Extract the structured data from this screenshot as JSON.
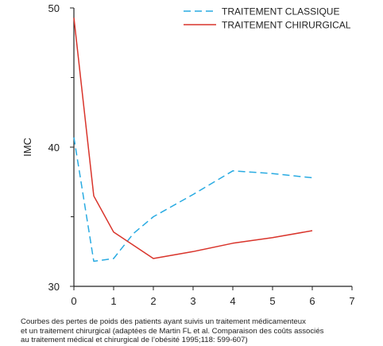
{
  "chart_data": {
    "type": "line",
    "ylabel": "IMC",
    "xlim": [
      0,
      7
    ],
    "ylim": [
      30,
      50
    ],
    "xticks": [
      "0",
      "1",
      "2",
      "3",
      "4",
      "5",
      "6",
      "7"
    ],
    "yticks": [
      "30",
      "40",
      "50"
    ],
    "grid": false,
    "legend_position": "top-right",
    "series": [
      {
        "name": "TRAITEMENT CLASSIQUE",
        "style": "dashed",
        "color": "#29abe2",
        "x": [
          0,
          0.5,
          1,
          1.5,
          2,
          3,
          4,
          5,
          6
        ],
        "y": [
          40.7,
          31.8,
          32.0,
          33.8,
          35.0,
          36.6,
          38.3,
          38.1,
          37.8
        ]
      },
      {
        "name": "TRAITEMENT CHIRURGICAL",
        "style": "solid",
        "color": "#d9342b",
        "x": [
          0,
          0.5,
          1,
          2,
          3,
          4,
          5,
          6
        ],
        "y": [
          49.3,
          36.5,
          33.9,
          32.0,
          32.5,
          33.1,
          33.5,
          34.0
        ]
      }
    ]
  },
  "caption": {
    "line1": "Courbes des pertes de poids des patients ayant suivis un traitement médicamenteux",
    "line2": "et un traitement chirurgical (adaptées de Martin FL et al. Comparaison des coûts associés",
    "line3": "au traitement médical et chirurgical de l’obésité 1995;118: 599-607)"
  }
}
